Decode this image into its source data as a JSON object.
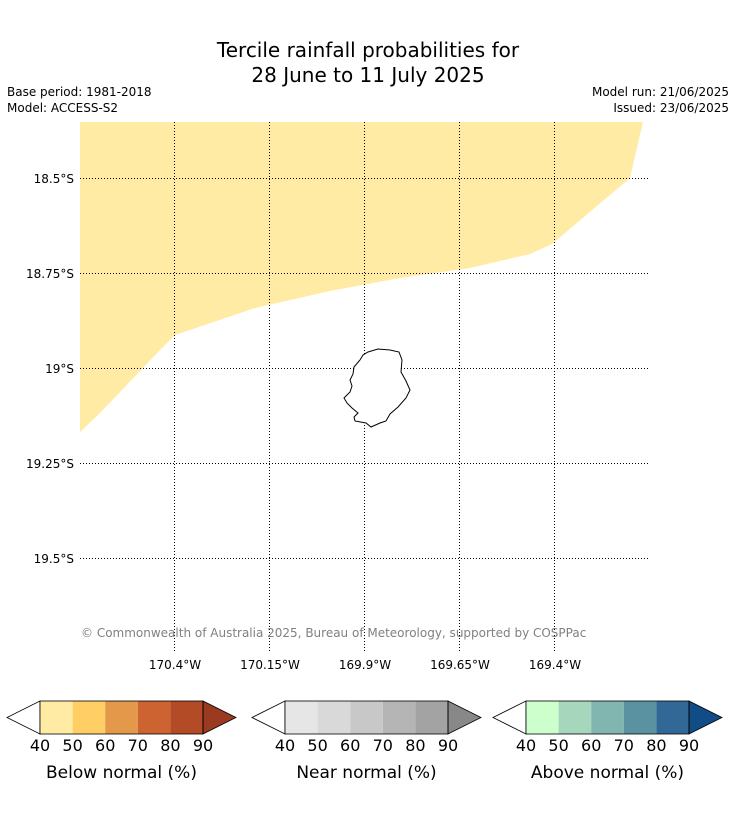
{
  "title_line1": "Tercile rainfall probabilities for",
  "title_line2": "28 June to 11 July 2025",
  "base_period": "Base period: 1981-2018",
  "model": "Model: ACCESS-S2",
  "model_run": "Model run: 21/06/2025",
  "issued": "Issued: 23/06/2025",
  "copyright": "© Commonwealth of Australia 2025, Bureau of Meteorology, supported by COSPPac",
  "map": {
    "lat_labels": [
      "18.5°S",
      "18.75°S",
      "19°S",
      "19.25°S",
      "19.5°S"
    ],
    "lon_labels": [
      "170.4°W",
      "170.15°W",
      "169.9°W",
      "169.65°W",
      "169.4°W"
    ],
    "shaded_category": "Below normal",
    "shaded_range": "40-50",
    "shaded_color": "#ffeba3",
    "island_outline_color": "#000000"
  },
  "legends": [
    {
      "label": "Below normal (%)",
      "ticks": [
        "40",
        "50",
        "60",
        "70",
        "80",
        "90"
      ],
      "colors": [
        "#ffeba3",
        "#ffcf66",
        "#e3984a",
        "#cd6330",
        "#b34b27",
        "#993a21"
      ]
    },
    {
      "label": "Near normal (%)",
      "ticks": [
        "40",
        "50",
        "60",
        "70",
        "80",
        "90"
      ],
      "colors": [
        "#e6e6e6",
        "#d9d9d9",
        "#c8c8c8",
        "#b5b5b5",
        "#a3a3a3",
        "#888888"
      ]
    },
    {
      "label": "Above normal (%)",
      "ticks": [
        "40",
        "50",
        "60",
        "70",
        "80",
        "90"
      ],
      "colors": [
        "#ccffcc",
        "#a6d6bc",
        "#80b5b0",
        "#5b92a1",
        "#326896",
        "#114c87"
      ]
    }
  ]
}
